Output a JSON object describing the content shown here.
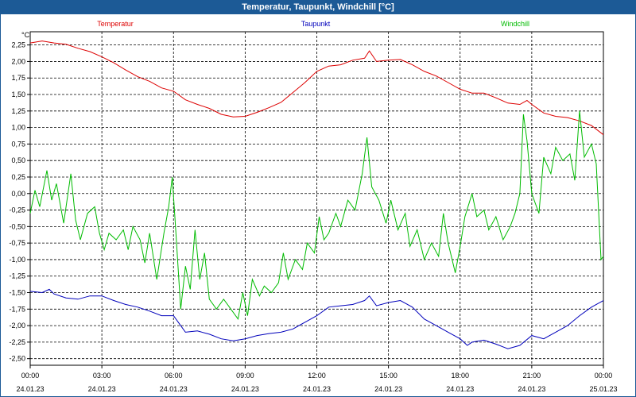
{
  "window": {
    "title": "Temperatur, Taupunkt, Windchill [°C]"
  },
  "chart_data": {
    "type": "line",
    "title": "Temperatur, Taupunkt, Windchill [°C]",
    "ylabel": "°C",
    "xlabel": "",
    "ylim": [
      -2.6,
      2.45
    ],
    "xlim": [
      0,
      24
    ],
    "grid": true,
    "legend_placement": "top",
    "yticks": [
      "2,25",
      "2,00",
      "1,75",
      "1,50",
      "1,25",
      "1,00",
      "0,75",
      "0,50",
      "0,25",
      "0,00",
      "-0,25",
      "-0,50",
      "-0,75",
      "-1,00",
      "-1,25",
      "-1,50",
      "-1,75",
      "-2,00",
      "-2,25",
      "-2,50"
    ],
    "ytick_values": [
      2.25,
      2.0,
      1.75,
      1.5,
      1.25,
      1.0,
      0.75,
      0.5,
      0.25,
      0.0,
      -0.25,
      -0.5,
      -0.75,
      -1.0,
      -1.25,
      -1.5,
      -1.75,
      -2.0,
      -2.25,
      -2.5
    ],
    "xticks": [
      {
        "x": 0,
        "time": "00:00",
        "date": "24.01.23"
      },
      {
        "x": 3,
        "time": "03:00",
        "date": "24.01.23"
      },
      {
        "x": 6,
        "time": "06:00",
        "date": "24.01.23"
      },
      {
        "x": 9,
        "time": "09:00",
        "date": "24.01.23"
      },
      {
        "x": 12,
        "time": "12:00",
        "date": "24.01.23"
      },
      {
        "x": 15,
        "time": "15:00",
        "date": "24.01.23"
      },
      {
        "x": 18,
        "time": "18:00",
        "date": "24.01.23"
      },
      {
        "x": 21,
        "time": "21:00",
        "date": "24.01.23"
      },
      {
        "x": 24,
        "time": "00:00",
        "date": "25.01.23"
      }
    ],
    "series": [
      {
        "name": "Temperatur",
        "color": "#dd0000",
        "points": [
          [
            0,
            2.28
          ],
          [
            0.5,
            2.31
          ],
          [
            1,
            2.28
          ],
          [
            1.5,
            2.26
          ],
          [
            2,
            2.2
          ],
          [
            2.5,
            2.15
          ],
          [
            3,
            2.07
          ],
          [
            3.5,
            1.98
          ],
          [
            4,
            1.87
          ],
          [
            4.5,
            1.77
          ],
          [
            5,
            1.7
          ],
          [
            5.5,
            1.6
          ],
          [
            6,
            1.55
          ],
          [
            6.5,
            1.42
          ],
          [
            7,
            1.35
          ],
          [
            7.5,
            1.29
          ],
          [
            8,
            1.2
          ],
          [
            8.5,
            1.16
          ],
          [
            9,
            1.17
          ],
          [
            9.5,
            1.23
          ],
          [
            10,
            1.3
          ],
          [
            10.5,
            1.38
          ],
          [
            11,
            1.53
          ],
          [
            11.5,
            1.68
          ],
          [
            12,
            1.85
          ],
          [
            12.5,
            1.93
          ],
          [
            13,
            1.95
          ],
          [
            13.5,
            2.02
          ],
          [
            14,
            2.05
          ],
          [
            14.2,
            2.16
          ],
          [
            14.5,
            2.0
          ],
          [
            15,
            2.02
          ],
          [
            15.5,
            2.03
          ],
          [
            16,
            1.95
          ],
          [
            16.5,
            1.85
          ],
          [
            17,
            1.78
          ],
          [
            17.5,
            1.68
          ],
          [
            18,
            1.58
          ],
          [
            18.5,
            1.52
          ],
          [
            19,
            1.52
          ],
          [
            19.5,
            1.45
          ],
          [
            20,
            1.37
          ],
          [
            20.5,
            1.35
          ],
          [
            20.8,
            1.41
          ],
          [
            21,
            1.35
          ],
          [
            21.5,
            1.22
          ],
          [
            22,
            1.17
          ],
          [
            22.5,
            1.15
          ],
          [
            23,
            1.1
          ],
          [
            23.5,
            1.03
          ],
          [
            24,
            0.89
          ]
        ]
      },
      {
        "name": "Taupunkt",
        "color": "#0000bb",
        "points": [
          [
            0,
            -1.48
          ],
          [
            0.5,
            -1.5
          ],
          [
            0.8,
            -1.45
          ],
          [
            1,
            -1.52
          ],
          [
            1.5,
            -1.58
          ],
          [
            2,
            -1.6
          ],
          [
            2.5,
            -1.55
          ],
          [
            3,
            -1.55
          ],
          [
            3.5,
            -1.62
          ],
          [
            4,
            -1.68
          ],
          [
            4.5,
            -1.72
          ],
          [
            5,
            -1.78
          ],
          [
            5.5,
            -1.85
          ],
          [
            6,
            -1.85
          ],
          [
            6.2,
            -1.95
          ],
          [
            6.5,
            -2.1
          ],
          [
            7,
            -2.08
          ],
          [
            7.5,
            -2.13
          ],
          [
            8,
            -2.2
          ],
          [
            8.5,
            -2.23
          ],
          [
            9,
            -2.2
          ],
          [
            9.5,
            -2.15
          ],
          [
            10,
            -2.12
          ],
          [
            10.5,
            -2.1
          ],
          [
            11,
            -2.05
          ],
          [
            11.5,
            -1.95
          ],
          [
            12,
            -1.85
          ],
          [
            12.5,
            -1.72
          ],
          [
            13,
            -1.7
          ],
          [
            13.5,
            -1.68
          ],
          [
            14,
            -1.62
          ],
          [
            14.2,
            -1.55
          ],
          [
            14.5,
            -1.7
          ],
          [
            15,
            -1.65
          ],
          [
            15.5,
            -1.62
          ],
          [
            16,
            -1.72
          ],
          [
            16.5,
            -1.9
          ],
          [
            17,
            -2.0
          ],
          [
            17.5,
            -2.1
          ],
          [
            18,
            -2.2
          ],
          [
            18.3,
            -2.3
          ],
          [
            18.5,
            -2.25
          ],
          [
            19,
            -2.22
          ],
          [
            19.5,
            -2.28
          ],
          [
            20,
            -2.35
          ],
          [
            20.5,
            -2.3
          ],
          [
            21,
            -2.15
          ],
          [
            21.5,
            -2.2
          ],
          [
            22,
            -2.1
          ],
          [
            22.5,
            -2.0
          ],
          [
            23,
            -1.85
          ],
          [
            23.5,
            -1.72
          ],
          [
            24,
            -1.62
          ]
        ]
      },
      {
        "name": "Windchill",
        "color": "#00bb00",
        "points": [
          [
            0,
            -0.3
          ],
          [
            0.2,
            0.05
          ],
          [
            0.4,
            -0.2
          ],
          [
            0.7,
            0.35
          ],
          [
            0.9,
            -0.1
          ],
          [
            1.1,
            0.15
          ],
          [
            1.4,
            -0.45
          ],
          [
            1.7,
            0.3
          ],
          [
            1.9,
            -0.4
          ],
          [
            2.1,
            -0.7
          ],
          [
            2.4,
            -0.3
          ],
          [
            2.7,
            -0.2
          ],
          [
            2.9,
            -0.6
          ],
          [
            3.1,
            -0.85
          ],
          [
            3.3,
            -0.6
          ],
          [
            3.6,
            -0.7
          ],
          [
            3.9,
            -0.55
          ],
          [
            4.1,
            -0.85
          ],
          [
            4.3,
            -0.5
          ],
          [
            4.6,
            -0.7
          ],
          [
            4.8,
            -1.05
          ],
          [
            5.0,
            -0.6
          ],
          [
            5.3,
            -1.3
          ],
          [
            5.6,
            -0.6
          ],
          [
            5.8,
            -0.2
          ],
          [
            5.95,
            0.25
          ],
          [
            6.1,
            -0.6
          ],
          [
            6.3,
            -1.75
          ],
          [
            6.5,
            -1.1
          ],
          [
            6.7,
            -1.45
          ],
          [
            6.9,
            -0.55
          ],
          [
            7.1,
            -1.3
          ],
          [
            7.3,
            -0.9
          ],
          [
            7.5,
            -1.6
          ],
          [
            7.8,
            -1.75
          ],
          [
            8.1,
            -1.6
          ],
          [
            8.4,
            -1.75
          ],
          [
            8.7,
            -1.9
          ],
          [
            8.9,
            -1.5
          ],
          [
            9.1,
            -1.85
          ],
          [
            9.3,
            -1.3
          ],
          [
            9.6,
            -1.55
          ],
          [
            9.8,
            -1.4
          ],
          [
            10.1,
            -1.5
          ],
          [
            10.4,
            -1.35
          ],
          [
            10.6,
            -0.9
          ],
          [
            10.8,
            -1.3
          ],
          [
            11.1,
            -1.0
          ],
          [
            11.4,
            -1.15
          ],
          [
            11.6,
            -0.75
          ],
          [
            11.9,
            -0.9
          ],
          [
            12.1,
            -0.35
          ],
          [
            12.3,
            -0.7
          ],
          [
            12.5,
            -0.6
          ],
          [
            12.8,
            -0.3
          ],
          [
            13.0,
            -0.5
          ],
          [
            13.3,
            -0.1
          ],
          [
            13.6,
            -0.25
          ],
          [
            13.9,
            0.3
          ],
          [
            14.1,
            0.85
          ],
          [
            14.3,
            0.1
          ],
          [
            14.6,
            -0.1
          ],
          [
            14.9,
            -0.45
          ],
          [
            15.1,
            -0.1
          ],
          [
            15.4,
            -0.55
          ],
          [
            15.7,
            -0.3
          ],
          [
            15.9,
            -0.8
          ],
          [
            16.2,
            -0.55
          ],
          [
            16.5,
            -1.0
          ],
          [
            16.8,
            -0.75
          ],
          [
            17.1,
            -0.95
          ],
          [
            17.3,
            -0.3
          ],
          [
            17.5,
            -0.75
          ],
          [
            17.8,
            -1.2
          ],
          [
            18.0,
            -0.8
          ],
          [
            18.2,
            -0.35
          ],
          [
            18.5,
            0.0
          ],
          [
            18.7,
            -0.35
          ],
          [
            19.0,
            -0.25
          ],
          [
            19.2,
            -0.55
          ],
          [
            19.5,
            -0.35
          ],
          [
            19.8,
            -0.7
          ],
          [
            20.1,
            -0.5
          ],
          [
            20.3,
            -0.3
          ],
          [
            20.5,
            0.0
          ],
          [
            20.65,
            1.2
          ],
          [
            20.8,
            0.8
          ],
          [
            21.0,
            0.0
          ],
          [
            21.3,
            -0.3
          ],
          [
            21.5,
            0.55
          ],
          [
            21.8,
            0.3
          ],
          [
            22.0,
            0.7
          ],
          [
            22.3,
            0.5
          ],
          [
            22.6,
            0.6
          ],
          [
            22.8,
            0.2
          ],
          [
            23.0,
            1.25
          ],
          [
            23.2,
            0.55
          ],
          [
            23.5,
            0.75
          ],
          [
            23.7,
            0.45
          ],
          [
            23.9,
            -1.0
          ],
          [
            24.0,
            -0.95
          ]
        ]
      }
    ]
  }
}
